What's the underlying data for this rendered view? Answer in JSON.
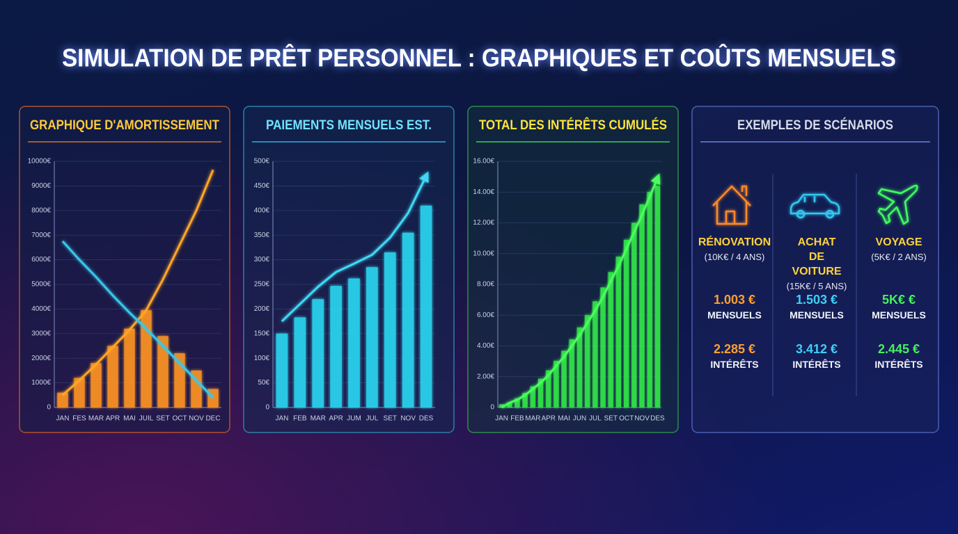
{
  "title": "SIMULATION DE PRÊT PERSONNEL : GRAPHIQUES ET COÛTS MENSUELS",
  "chart_data": [
    {
      "type": "bar",
      "title": "GRAPHIQUE D'AMORTISSEMENT",
      "categories": [
        "JAN",
        "FES",
        "MAR",
        "APR",
        "MAI",
        "JUIL",
        "SET",
        "OCT",
        "NOV",
        "DEC"
      ],
      "values": [
        600,
        1200,
        1800,
        2500,
        3200,
        3950,
        2900,
        2200,
        1500,
        750
      ],
      "color": "#ff9420",
      "lines": [
        {
          "color": "#ffa626",
          "values": [
            500,
            1100,
            1750,
            2450,
            3150,
            3950,
            5200,
            6600,
            8000,
            9650
          ]
        },
        {
          "color": "#38c8e8",
          "values": [
            6750,
            6000,
            5300,
            4550,
            3850,
            3200,
            2500,
            1800,
            1100,
            400
          ]
        }
      ],
      "ylim": [
        0,
        10000
      ],
      "yticks": [
        0,
        {
          "value": 1000,
          "label": "1000€"
        },
        {
          "value": 2000,
          "label": "2000€"
        },
        {
          "value": 3000,
          "label": "3000€"
        },
        {
          "value": 4000,
          "label": "4000€"
        },
        {
          "value": 5000,
          "label": "5000€"
        },
        {
          "value": 6000,
          "label": "6000€"
        },
        {
          "value": 7000,
          "label": "7000€"
        },
        {
          "value": 8000,
          "label": "8000€"
        },
        {
          "value": 9000,
          "label": "9000€"
        },
        {
          "value": 10000,
          "label": "10000€"
        }
      ],
      "grid": true
    },
    {
      "type": "bar",
      "title": "PAIEMENTS MENSUELS EST.",
      "categories": [
        "JAN",
        "FEB",
        "MAR",
        "APR",
        "JUM",
        "JUL",
        "SET",
        "NOV",
        "DES"
      ],
      "values": [
        150,
        183,
        220,
        247,
        262,
        285,
        315,
        355,
        410
      ],
      "color": "#2bd6f0",
      "lines": [
        {
          "color": "#3fd8f4",
          "values": [
            175,
            210,
            245,
            275,
            292,
            310,
            345,
            395,
            470
          ]
        }
      ],
      "ylim": [
        0,
        500
      ],
      "yticks": [
        0,
        {
          "value": 50,
          "label": "50€"
        },
        {
          "value": 100,
          "label": "100€"
        },
        {
          "value": 150,
          "label": "150€"
        },
        {
          "value": 200,
          "label": "200€"
        },
        {
          "value": 250,
          "label": "250€"
        },
        {
          "value": 300,
          "label": "300€"
        },
        {
          "value": 350,
          "label": "350€"
        },
        {
          "value": 400,
          "label": "400€"
        },
        {
          "value": 450,
          "label": "450€"
        },
        {
          "value": 500,
          "label": "500€"
        }
      ],
      "grid": true
    },
    {
      "type": "bar",
      "title": "TOTAL DES INTÉRÊTS CUMULÉS",
      "categories": [
        "JAN",
        null,
        "FEB",
        null,
        "MAR",
        null,
        "APR",
        null,
        "MAI",
        null,
        "JUN",
        null,
        "JUL",
        null,
        "SET",
        null,
        "OCT",
        null,
        "NOV",
        null,
        "DES"
      ],
      "values": [
        0.2,
        0.29,
        0.57,
        0.94,
        1.37,
        1.86,
        2.41,
        3.03,
        3.68,
        4.43,
        5.2,
        6.0,
        6.9,
        7.8,
        8.8,
        9.8,
        10.9,
        12.0,
        13.2,
        14.0,
        14.4
      ],
      "color": "#32e84a",
      "lines": [
        {
          "color": "#48ff5c",
          "values": [
            0,
            0.3,
            0.5,
            0.8,
            1.2,
            1.6,
            2.1,
            2.7,
            3.3,
            4.0,
            4.7,
            5.5,
            6.3,
            7.2,
            8.2,
            9.2,
            10.3,
            11.4,
            12.5,
            13.7,
            14.9
          ]
        }
      ],
      "ylim": [
        0,
        16
      ],
      "yticks": [
        0,
        {
          "value": 2,
          "label": "2.00€"
        },
        {
          "value": 4,
          "label": "4.00€"
        },
        {
          "value": 6,
          "label": "6.00€"
        },
        {
          "value": 8,
          "label": "8.00€"
        },
        {
          "value": 10,
          "label": "10.00€"
        },
        {
          "value": 12,
          "label": "12.00€"
        },
        {
          "value": 14,
          "label": "14.00€"
        },
        {
          "value": 16,
          "label": "16.00€"
        }
      ],
      "grid": true
    }
  ],
  "scenarios": {
    "title": "EXEMPLES DE SCÉNARIOS",
    "items": [
      {
        "name": "RÉNOVATION",
        "detail": "(10K€ / 4 ANS)",
        "monthly": "1.003 €",
        "monthly_label": "MENSUELS",
        "interest": "2.285 €",
        "interest_label": "INTÉRÊTS"
      },
      {
        "name": "ACHAT DE VOITURE",
        "detail": "(15K€ / 5 ANS)",
        "monthly": "1.503 €",
        "monthly_label": "MENSUELS",
        "interest": "3.412 €",
        "interest_label": "INTÉRÊTS"
      },
      {
        "name": "VOYAGE",
        "detail": "(5K€ / 2 ANS)",
        "monthly": "5K€ €",
        "monthly_label": "MENSUELS",
        "interest": "2.445 €",
        "interest_label": "INTÉRÊTS"
      }
    ]
  }
}
